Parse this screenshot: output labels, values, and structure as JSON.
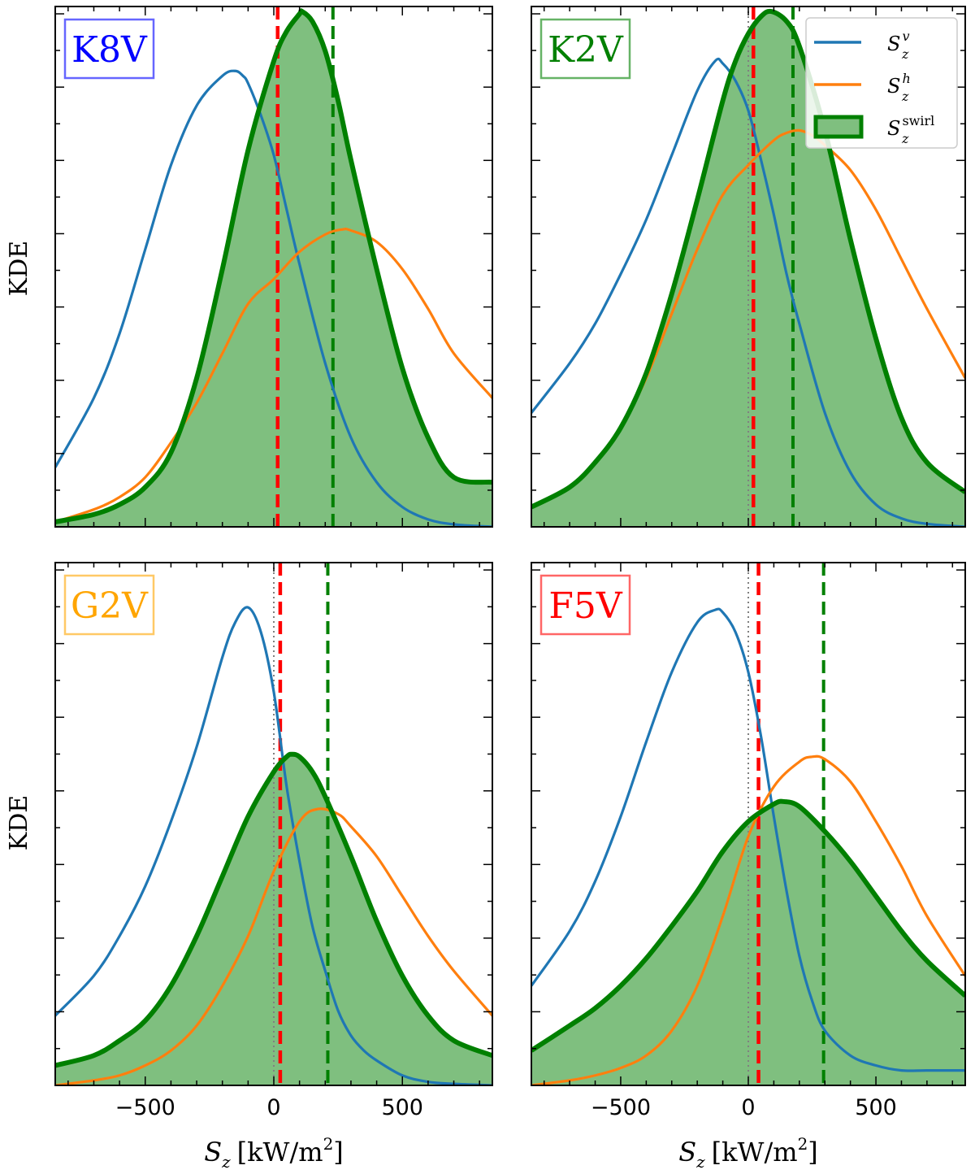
{
  "chart_data": {
    "type": "area",
    "ylabel": "KDE",
    "xlabel": "S",
    "xlabel_sub": "z",
    "xlabel_unit": "[kW/m",
    "xlabel_unit_sup": "2",
    "xlabel_unit_close": "]",
    "xlim": [
      -850,
      850
    ],
    "ylim": [
      0,
      1.05
    ],
    "x_ticks": [
      -500,
      0,
      500
    ],
    "x_tick_labels": [
      "−500",
      "0",
      "500"
    ],
    "legend": {
      "placement": "top-right",
      "entries": [
        {
          "base": "S",
          "sub": "z",
          "sup": "v",
          "color": "#1f77b4",
          "kind": "line"
        },
        {
          "base": "S",
          "sub": "z",
          "sup": "h",
          "color": "#ff7f0e",
          "kind": "line"
        },
        {
          "base": "S",
          "sub": "z",
          "sup": "swirl",
          "color": "#008000",
          "kind": "patch"
        }
      ]
    },
    "panels": [
      {
        "label": "K8V",
        "label_color": "#0000ff",
        "red_line_x": 15,
        "green_line_x": 230,
        "dotted_line_x": null,
        "series": [
          {
            "name": "Sz_v",
            "color": "#1f77b4",
            "x": [
              -850,
              -700,
              -600,
              -500,
              -400,
              -300,
              -200,
              -150,
              -120,
              -100,
              -50,
              0,
              50,
              100,
              200,
              300,
              400,
              500,
              600,
              700,
              850
            ],
            "y": [
              0.12,
              0.26,
              0.39,
              0.56,
              0.73,
              0.85,
              0.91,
              0.92,
              0.91,
              0.895,
              0.83,
              0.75,
              0.64,
              0.53,
              0.33,
              0.18,
              0.09,
              0.04,
              0.015,
              0.005,
              0.0
            ]
          },
          {
            "name": "Sz_h",
            "color": "#ff7f0e",
            "x": [
              -850,
              -700,
              -600,
              -500,
              -400,
              -300,
              -200,
              -100,
              0,
              100,
              200,
              265,
              300,
              400,
              500,
              600,
              700,
              850
            ],
            "y": [
              0.01,
              0.035,
              0.06,
              0.1,
              0.17,
              0.25,
              0.35,
              0.45,
              0.5,
              0.555,
              0.59,
              0.6,
              0.598,
              0.575,
              0.52,
              0.44,
              0.35,
              0.26
            ]
          },
          {
            "name": "Sz_swirl",
            "color": "#008000",
            "fill": "#7fbf7f",
            "x": [
              -850,
              -700,
              -600,
              -500,
              -400,
              -300,
              -200,
              -100,
              0,
              50,
              100,
              110,
              150,
              200,
              250,
              300,
              400,
              500,
              600,
              700,
              850
            ],
            "y": [
              0.01,
              0.025,
              0.045,
              0.08,
              0.15,
              0.3,
              0.52,
              0.76,
              0.94,
              1.0,
              1.035,
              1.04,
              1.02,
              0.96,
              0.86,
              0.74,
              0.52,
              0.32,
              0.18,
              0.1,
              0.09
            ]
          }
        ]
      },
      {
        "label": "K2V",
        "label_color": "#008000",
        "red_line_x": 20,
        "green_line_x": 175,
        "dotted_line_x": 0,
        "series": [
          {
            "name": "Sz_v",
            "color": "#1f77b4",
            "x": [
              -850,
              -700,
              -600,
              -500,
              -400,
              -300,
              -200,
              -130,
              -100,
              -50,
              0,
              50,
              100,
              150,
              200,
              300,
              400,
              500,
              600,
              700,
              850
            ],
            "y": [
              0.23,
              0.33,
              0.41,
              0.51,
              0.62,
              0.75,
              0.88,
              0.94,
              0.935,
              0.9,
              0.84,
              0.74,
              0.63,
              0.51,
              0.41,
              0.23,
              0.11,
              0.045,
              0.017,
              0.006,
              0.0
            ]
          },
          {
            "name": "Sz_h",
            "color": "#ff7f0e",
            "x": [
              -850,
              -700,
              -600,
              -500,
              -400,
              -300,
              -200,
              -100,
              0,
              100,
              150,
              200,
              250,
              300,
              400,
              500,
              600,
              700,
              850
            ],
            "y": [
              0.04,
              0.08,
              0.13,
              0.2,
              0.3,
              0.43,
              0.56,
              0.67,
              0.73,
              0.78,
              0.795,
              0.8,
              0.79,
              0.77,
              0.72,
              0.64,
              0.54,
              0.44,
              0.3
            ]
          },
          {
            "name": "Sz_swirl",
            "color": "#008000",
            "fill": "#7fbf7f",
            "x": [
              -850,
              -700,
              -600,
              -500,
              -400,
              -300,
              -200,
              -100,
              -50,
              0,
              50,
              90,
              150,
              200,
              300,
              400,
              500,
              600,
              700,
              850
            ],
            "y": [
              0.04,
              0.08,
              0.13,
              0.2,
              0.31,
              0.47,
              0.66,
              0.86,
              0.94,
              0.995,
              1.03,
              1.04,
              1.02,
              0.97,
              0.8,
              0.58,
              0.38,
              0.22,
              0.13,
              0.07
            ]
          }
        ]
      },
      {
        "label": "G2V",
        "label_color": "#ffa500",
        "red_line_x": 25,
        "green_line_x": 210,
        "dotted_line_x": 0,
        "series": [
          {
            "name": "Sz_v",
            "color": "#1f77b4",
            "x": [
              -850,
              -700,
              -600,
              -500,
              -400,
              -300,
              -200,
              -150,
              -100,
              -50,
              0,
              50,
              100,
              150,
              200,
              250,
              300,
              350,
              400,
              500,
              600,
              700,
              850
            ],
            "y": [
              0.14,
              0.22,
              0.3,
              0.4,
              0.53,
              0.68,
              0.86,
              0.93,
              0.96,
              0.91,
              0.79,
              0.6,
              0.45,
              0.32,
              0.23,
              0.15,
              0.1,
              0.07,
              0.05,
              0.02,
              0.007,
              0.003,
              0.0
            ]
          },
          {
            "name": "Sz_h",
            "color": "#ff7f0e",
            "x": [
              -850,
              -700,
              -600,
              -500,
              -400,
              -300,
              -200,
              -100,
              0,
              100,
              170,
              250,
              300,
              400,
              500,
              600,
              700,
              850
            ],
            "y": [
              0.0,
              0.01,
              0.02,
              0.04,
              0.07,
              0.12,
              0.2,
              0.3,
              0.43,
              0.53,
              0.555,
              0.545,
              0.52,
              0.46,
              0.38,
              0.3,
              0.23,
              0.14
            ]
          },
          {
            "name": "Sz_swirl",
            "color": "#008000",
            "fill": "#7fbf7f",
            "x": [
              -850,
              -700,
              -600,
              -500,
              -400,
              -300,
              -200,
              -100,
              0,
              50,
              70,
              100,
              150,
              200,
              300,
              400,
              500,
              600,
              700,
              850
            ],
            "y": [
              0.04,
              0.06,
              0.09,
              0.13,
              0.2,
              0.3,
              0.42,
              0.54,
              0.63,
              0.66,
              0.665,
              0.66,
              0.63,
              0.58,
              0.46,
              0.33,
              0.22,
              0.14,
              0.09,
              0.06
            ]
          }
        ]
      },
      {
        "label": "F5V",
        "label_color": "#ff0000",
        "red_line_x": 40,
        "green_line_x": 295,
        "dotted_line_x": 0,
        "series": [
          {
            "name": "Sz_v",
            "color": "#1f77b4",
            "x": [
              -850,
              -700,
              -600,
              -500,
              -400,
              -300,
              -200,
              -130,
              -100,
              -50,
              0,
              50,
              100,
              150,
              200,
              250,
              300,
              400,
              500,
              600,
              700,
              850
            ],
            "y": [
              0.2,
              0.31,
              0.41,
              0.54,
              0.69,
              0.83,
              0.93,
              0.955,
              0.95,
              0.91,
              0.83,
              0.7,
              0.54,
              0.39,
              0.26,
              0.17,
              0.11,
              0.06,
              0.04,
              0.03,
              0.03,
              0.03
            ]
          },
          {
            "name": "Sz_h",
            "color": "#ff7f0e",
            "x": [
              -850,
              -700,
              -600,
              -500,
              -400,
              -300,
              -200,
              -100,
              0,
              100,
              200,
              250,
              300,
              400,
              500,
              600,
              700,
              850
            ],
            "y": [
              0.0,
              0.01,
              0.02,
              0.035,
              0.06,
              0.11,
              0.2,
              0.34,
              0.5,
              0.6,
              0.65,
              0.66,
              0.655,
              0.61,
              0.53,
              0.44,
              0.34,
              0.22
            ]
          },
          {
            "name": "Sz_swirl",
            "color": "#008000",
            "fill": "#7fbf7f",
            "x": [
              -850,
              -700,
              -600,
              -500,
              -400,
              -300,
              -200,
              -100,
              0,
              100,
              140,
              200,
              300,
              400,
              500,
              600,
              700,
              850
            ],
            "y": [
              0.07,
              0.12,
              0.155,
              0.2,
              0.255,
              0.32,
              0.39,
              0.47,
              0.53,
              0.565,
              0.57,
              0.56,
              0.51,
              0.45,
              0.38,
              0.31,
              0.25,
              0.18
            ]
          }
        ]
      }
    ]
  }
}
